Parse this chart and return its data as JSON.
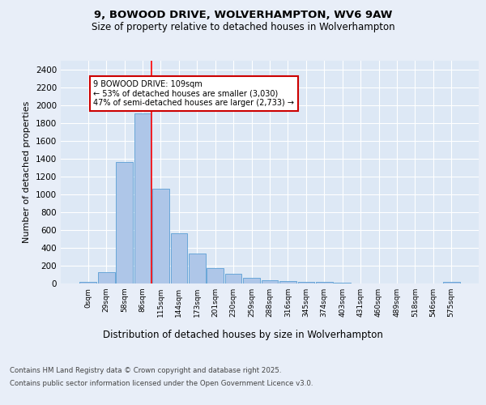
{
  "title1": "9, BOWOOD DRIVE, WOLVERHAMPTON, WV6 9AW",
  "title2": "Size of property relative to detached houses in Wolverhampton",
  "xlabel": "Distribution of detached houses by size in Wolverhampton",
  "ylabel": "Number of detached properties",
  "categories": [
    "0sqm",
    "29sqm",
    "58sqm",
    "86sqm",
    "115sqm",
    "144sqm",
    "173sqm",
    "201sqm",
    "230sqm",
    "259sqm",
    "288sqm",
    "316sqm",
    "345sqm",
    "374sqm",
    "403sqm",
    "431sqm",
    "460sqm",
    "489sqm",
    "518sqm",
    "546sqm",
    "575sqm"
  ],
  "values": [
    15,
    125,
    1360,
    1910,
    1060,
    560,
    335,
    170,
    110,
    60,
    35,
    28,
    22,
    15,
    5,
    3,
    3,
    2,
    2,
    2,
    15
  ],
  "bar_color": "#aec6e8",
  "bar_edge_color": "#5a9fd4",
  "background_color": "#dde8f5",
  "grid_color": "#ffffff",
  "red_line_x": 3.5,
  "annotation_text": "9 BOWOOD DRIVE: 109sqm\n← 53% of detached houses are smaller (3,030)\n47% of semi-detached houses are larger (2,733) →",
  "annotation_box_color": "#ffffff",
  "annotation_box_edge_color": "#cc0000",
  "ylim": [
    0,
    2500
  ],
  "yticks": [
    0,
    200,
    400,
    600,
    800,
    1000,
    1200,
    1400,
    1600,
    1800,
    2000,
    2200,
    2400
  ],
  "fig_bg": "#e8eef8",
  "footer1": "Contains HM Land Registry data © Crown copyright and database right 2025.",
  "footer2": "Contains public sector information licensed under the Open Government Licence v3.0."
}
